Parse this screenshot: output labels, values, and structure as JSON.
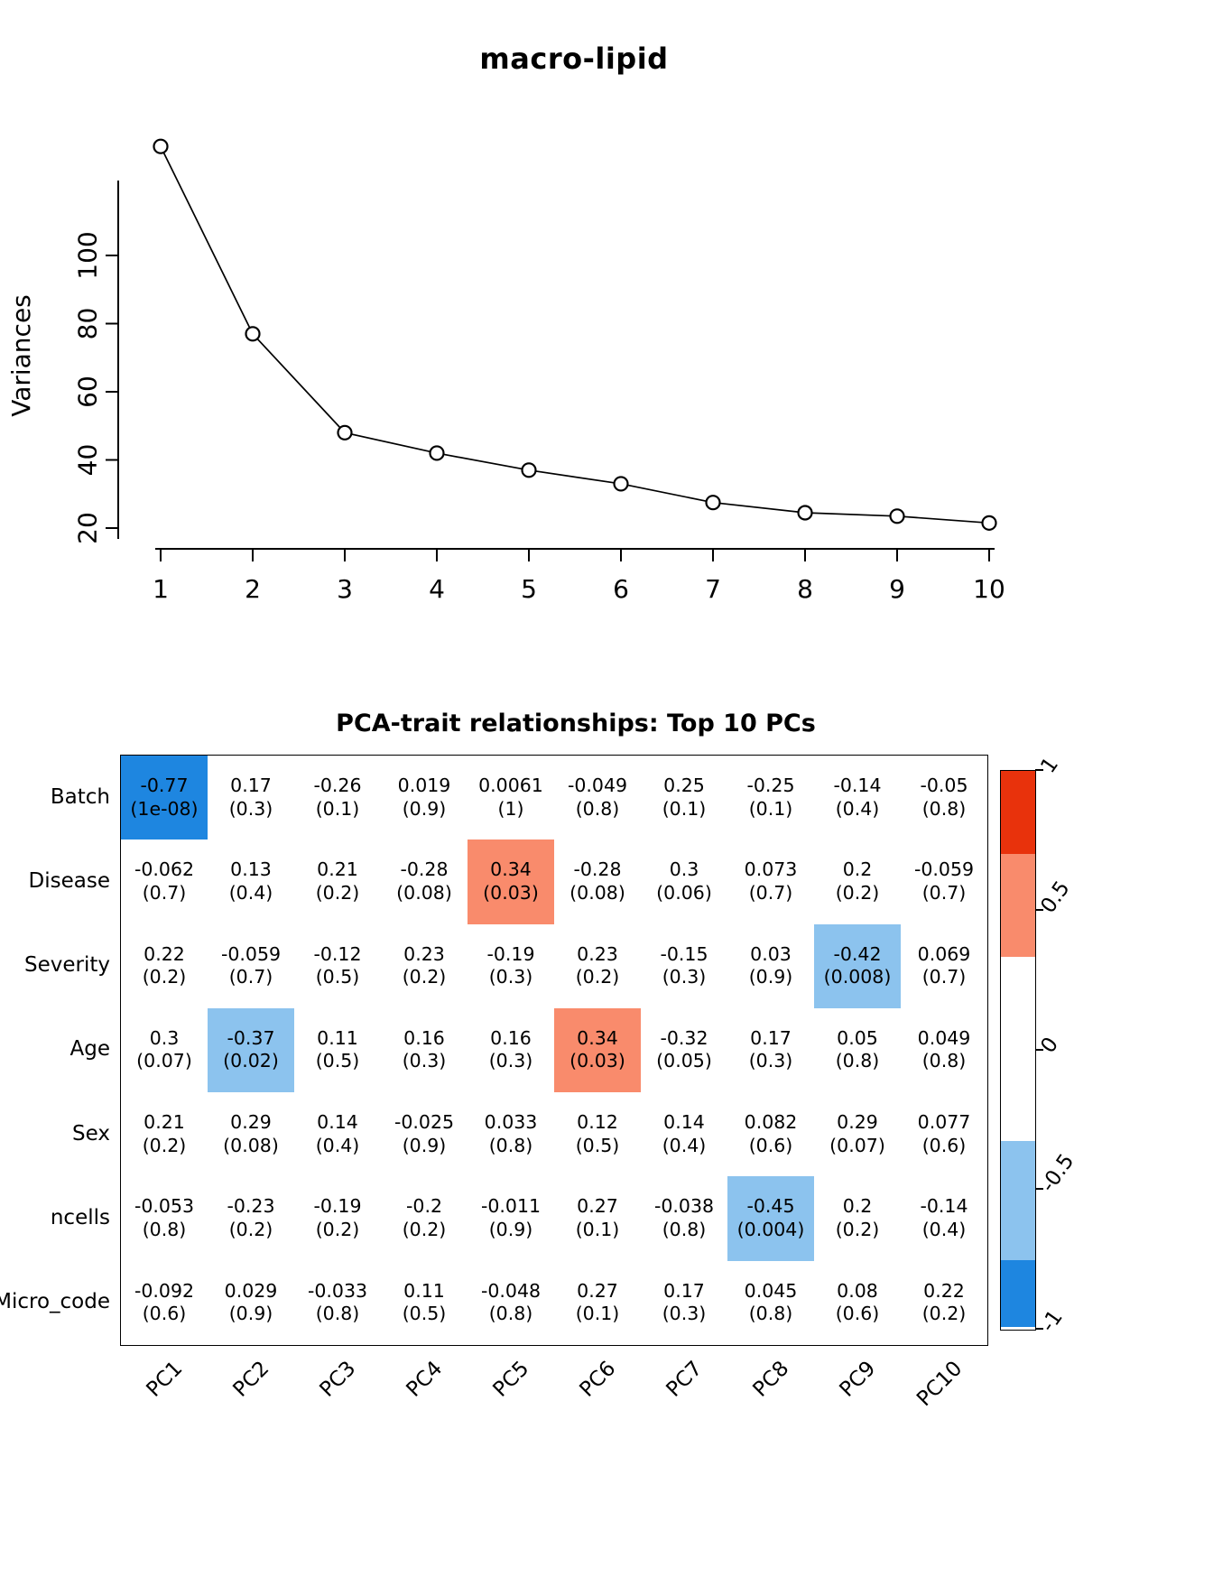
{
  "chart_data": [
    {
      "type": "line",
      "title": "macro-lipid",
      "xlabel": "",
      "ylabel": "Variances",
      "x": [
        1,
        2,
        3,
        4,
        5,
        6,
        7,
        8,
        9,
        10
      ],
      "values": [
        132,
        77,
        48,
        42,
        37,
        33,
        27.5,
        24.5,
        23.5,
        21.5
      ],
      "yticks": [
        20,
        40,
        60,
        80,
        100
      ],
      "ylim": [
        18,
        135
      ],
      "marker": "open-circle",
      "grid": false,
      "legend": "none"
    },
    {
      "type": "heatmap",
      "title": "PCA-trait relationships: Top 10 PCs",
      "rows": [
        "Batch",
        "Disease",
        "Severity",
        "Age",
        "Sex",
        "ncells",
        "Micro_code"
      ],
      "cols": [
        "PC1",
        "PC2",
        "PC3",
        "PC4",
        "PC5",
        "PC6",
        "PC7",
        "PC8",
        "PC9",
        "PC10"
      ],
      "cell_format": "correlation (p-value)",
      "cells": [
        [
          {
            "v": "-0.77",
            "p": "1e-08"
          },
          {
            "v": "0.17",
            "p": "0.3"
          },
          {
            "v": "-0.26",
            "p": "0.1"
          },
          {
            "v": "0.019",
            "p": "0.9"
          },
          {
            "v": "0.0061",
            "p": "1"
          },
          {
            "v": "-0.049",
            "p": "0.8"
          },
          {
            "v": "0.25",
            "p": "0.1"
          },
          {
            "v": "-0.25",
            "p": "0.1"
          },
          {
            "v": "-0.14",
            "p": "0.4"
          },
          {
            "v": "-0.05",
            "p": "0.8"
          }
        ],
        [
          {
            "v": "-0.062",
            "p": "0.7"
          },
          {
            "v": "0.13",
            "p": "0.4"
          },
          {
            "v": "0.21",
            "p": "0.2"
          },
          {
            "v": "-0.28",
            "p": "0.08"
          },
          {
            "v": "0.34",
            "p": "0.03"
          },
          {
            "v": "-0.28",
            "p": "0.08"
          },
          {
            "v": "0.3",
            "p": "0.06"
          },
          {
            "v": "0.073",
            "p": "0.7"
          },
          {
            "v": "0.2",
            "p": "0.2"
          },
          {
            "v": "-0.059",
            "p": "0.7"
          }
        ],
        [
          {
            "v": "0.22",
            "p": "0.2"
          },
          {
            "v": "-0.059",
            "p": "0.7"
          },
          {
            "v": "-0.12",
            "p": "0.5"
          },
          {
            "v": "0.23",
            "p": "0.2"
          },
          {
            "v": "-0.19",
            "p": "0.3"
          },
          {
            "v": "0.23",
            "p": "0.2"
          },
          {
            "v": "-0.15",
            "p": "0.3"
          },
          {
            "v": "0.03",
            "p": "0.9"
          },
          {
            "v": "-0.42",
            "p": "0.008"
          },
          {
            "v": "0.069",
            "p": "0.7"
          }
        ],
        [
          {
            "v": "0.3",
            "p": "0.07"
          },
          {
            "v": "-0.37",
            "p": "0.02"
          },
          {
            "v": "0.11",
            "p": "0.5"
          },
          {
            "v": "0.16",
            "p": "0.3"
          },
          {
            "v": "0.16",
            "p": "0.3"
          },
          {
            "v": "0.34",
            "p": "0.03"
          },
          {
            "v": "-0.32",
            "p": "0.05"
          },
          {
            "v": "0.17",
            "p": "0.3"
          },
          {
            "v": "0.05",
            "p": "0.8"
          },
          {
            "v": "0.049",
            "p": "0.8"
          }
        ],
        [
          {
            "v": "0.21",
            "p": "0.2"
          },
          {
            "v": "0.29",
            "p": "0.08"
          },
          {
            "v": "0.14",
            "p": "0.4"
          },
          {
            "v": "-0.025",
            "p": "0.9"
          },
          {
            "v": "0.033",
            "p": "0.8"
          },
          {
            "v": "0.12",
            "p": "0.5"
          },
          {
            "v": "0.14",
            "p": "0.4"
          },
          {
            "v": "0.082",
            "p": "0.6"
          },
          {
            "v": "0.29",
            "p": "0.07"
          },
          {
            "v": "0.077",
            "p": "0.6"
          }
        ],
        [
          {
            "v": "-0.053",
            "p": "0.8"
          },
          {
            "v": "-0.23",
            "p": "0.2"
          },
          {
            "v": "-0.19",
            "p": "0.2"
          },
          {
            "v": "-0.2",
            "p": "0.2"
          },
          {
            "v": "-0.011",
            "p": "0.9"
          },
          {
            "v": "0.27",
            "p": "0.1"
          },
          {
            "v": "-0.038",
            "p": "0.8"
          },
          {
            "v": "-0.45",
            "p": "0.004"
          },
          {
            "v": "0.2",
            "p": "0.2"
          },
          {
            "v": "-0.14",
            "p": "0.4"
          }
        ],
        [
          {
            "v": "-0.092",
            "p": "0.6"
          },
          {
            "v": "0.029",
            "p": "0.9"
          },
          {
            "v": "-0.033",
            "p": "0.8"
          },
          {
            "v": "0.11",
            "p": "0.5"
          },
          {
            "v": "-0.048",
            "p": "0.8"
          },
          {
            "v": "0.27",
            "p": "0.1"
          },
          {
            "v": "0.17",
            "p": "0.3"
          },
          {
            "v": "0.045",
            "p": "0.8"
          },
          {
            "v": "0.08",
            "p": "0.6"
          },
          {
            "v": "0.22",
            "p": "0.2"
          }
        ]
      ],
      "colorbar": {
        "range": [
          -1,
          1
        ],
        "ticks": [
          "1",
          "0.5",
          "0",
          "-0.5",
          "-1"
        ],
        "tick_values": [
          1,
          0.5,
          0,
          -0.5,
          -1
        ],
        "breaks": [
          1,
          0.7,
          0.33,
          -0.33,
          -0.76,
          -1
        ],
        "colors": [
          "#e8320c",
          "#f98b6c",
          "#ffffff",
          "#8cc3ee",
          "#1e86e0"
        ]
      }
    }
  ]
}
